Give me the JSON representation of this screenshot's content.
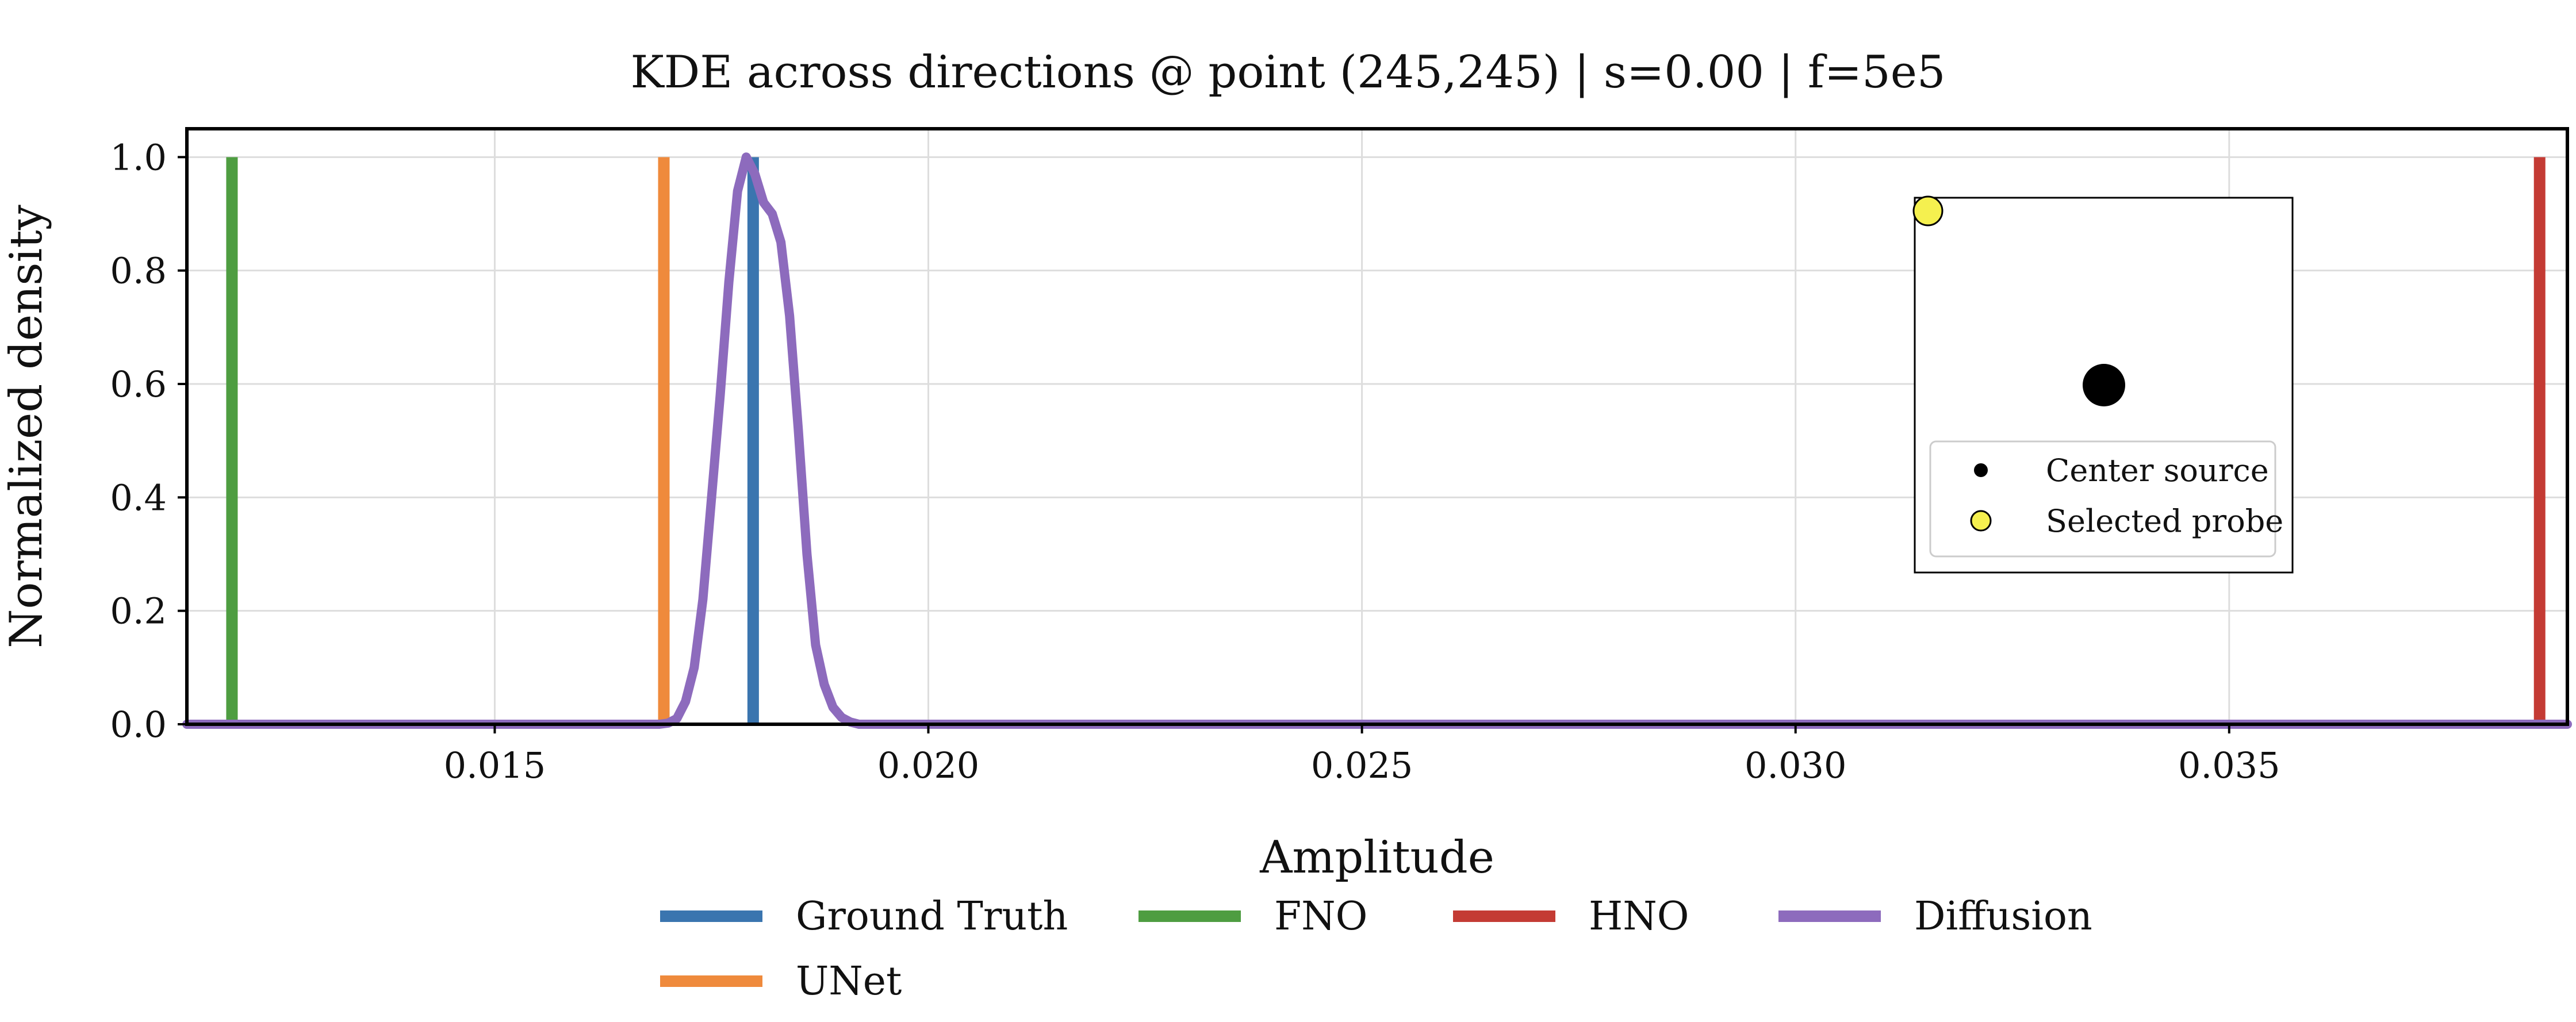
{
  "chart_data": {
    "type": "line",
    "title": "KDE across directions @ point (245,245) | s=0.00 | f=5e5",
    "xlabel": "Amplitude",
    "ylabel": "Normalized density",
    "xlim": [
      0.01145,
      0.0389
    ],
    "ylim": [
      0.0,
      1.05
    ],
    "x_ticks": [
      0.015,
      0.02,
      0.025,
      0.03,
      0.035
    ],
    "x_tick_labels": [
      "0.015",
      "0.020",
      "0.025",
      "0.030",
      "0.035"
    ],
    "y_ticks": [
      0.0,
      0.2,
      0.4,
      0.6,
      0.8,
      1.0
    ],
    "y_tick_labels": [
      "0.0",
      "0.2",
      "0.4",
      "0.6",
      "0.8",
      "1.0"
    ],
    "grid": true,
    "legend_position": "below",
    "series": [
      {
        "name": "Ground Truth",
        "color": "#3a75af",
        "kind": "spike",
        "x": 0.01798,
        "y": 1.0
      },
      {
        "name": "FNO",
        "color": "#4e9d41",
        "kind": "spike",
        "x": 0.01197,
        "y": 1.0
      },
      {
        "name": "HNO",
        "color": "#c43b34",
        "kind": "spike",
        "x": 0.03858,
        "y": 1.0
      },
      {
        "name": "Diffusion",
        "color": "#8d6bbd",
        "kind": "curve",
        "x": [
          0.01145,
          0.0169,
          0.017,
          0.0171,
          0.0172,
          0.0173,
          0.0174,
          0.0175,
          0.0176,
          0.0177,
          0.0178,
          0.0179,
          0.018,
          0.0181,
          0.0182,
          0.0183,
          0.0184,
          0.0185,
          0.0186,
          0.0187,
          0.0188,
          0.0189,
          0.019,
          0.0191,
          0.0192,
          0.0195,
          0.0389
        ],
        "y": [
          0.0,
          0.0,
          0.002,
          0.01,
          0.04,
          0.1,
          0.22,
          0.4,
          0.58,
          0.78,
          0.94,
          1.0,
          0.97,
          0.92,
          0.9,
          0.85,
          0.72,
          0.52,
          0.3,
          0.14,
          0.07,
          0.03,
          0.012,
          0.004,
          0.0,
          0.0,
          0.0
        ]
      },
      {
        "name": "UNet",
        "color": "#ef8a3c",
        "kind": "spike",
        "x": 0.01695,
        "y": 1.0
      }
    ],
    "legend_order": [
      "Ground Truth",
      "FNO",
      "HNO",
      "Diffusion",
      "UNet"
    ],
    "inset": {
      "markers": [
        {
          "name": "Center source",
          "color": "#000000"
        },
        {
          "name": "Selected probe",
          "color": "#f5f04f"
        }
      ]
    }
  }
}
